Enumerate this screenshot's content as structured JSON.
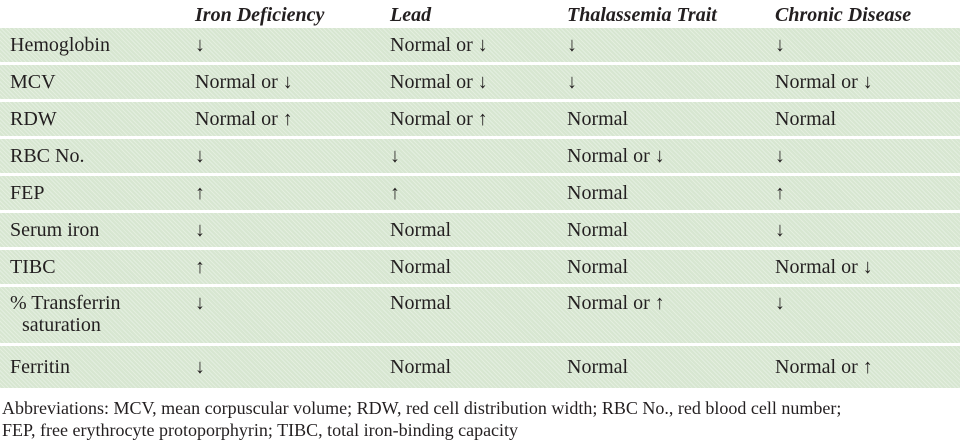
{
  "table": {
    "column_headers": [
      "Iron Deficiency",
      "Lead",
      "Thalassemia Trait",
      "Chronic Disease"
    ],
    "rows": [
      {
        "label": "Hemoglobin",
        "values": [
          "↓",
          "Normal or ↓",
          "↓",
          "↓"
        ]
      },
      {
        "label": "MCV",
        "values": [
          "Normal or ↓",
          "Normal or ↓",
          "↓",
          "Normal or ↓"
        ]
      },
      {
        "label": "RDW",
        "values": [
          "Normal or ↑",
          "Normal or ↑",
          "Normal",
          "Normal"
        ]
      },
      {
        "label": "RBC No.",
        "values": [
          "↓",
          "↓",
          "Normal or ↓",
          "↓"
        ]
      },
      {
        "label": "FEP",
        "values": [
          "↑",
          "↑",
          "Normal",
          "↑"
        ]
      },
      {
        "label": "Serum iron",
        "values": [
          "↓",
          "Normal",
          "Normal",
          "↓"
        ]
      },
      {
        "label": "TIBC",
        "values": [
          "↑",
          "Normal",
          "Normal",
          "Normal or ↓"
        ]
      },
      {
        "label": "% Transferrin saturation",
        "values": [
          "↓",
          "Normal",
          "Normal or ↑",
          "↓"
        ]
      },
      {
        "label": "Ferritin",
        "values": [
          "↓",
          "Normal",
          "Normal",
          "Normal or ↑"
        ]
      }
    ],
    "footnote_lines": [
      "Abbreviations: MCV, mean corpuscular volume; RDW, red cell distribution width; RBC No., red blood cell number;",
      "FEP, free erythrocyte protoporphyrin; TIBC, total iron-binding capacity"
    ]
  },
  "colors": {
    "row_background": "#dcead6",
    "separator": "#ffffff",
    "text": "#231f20",
    "page_background": "#ffffff"
  }
}
